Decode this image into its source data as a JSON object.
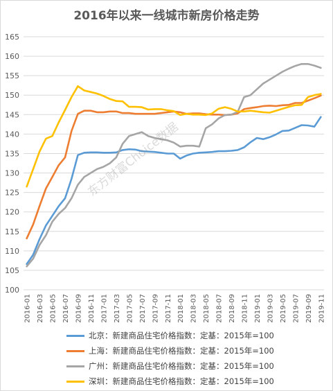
{
  "chart_data": {
    "type": "line",
    "title": "2016年以来一线城市新房价格走势",
    "ylim": [
      100,
      165
    ],
    "yticks": [
      100,
      105,
      110,
      115,
      120,
      125,
      130,
      135,
      140,
      145,
      150,
      155,
      160,
      165
    ],
    "x": [
      "2016-01",
      "2016-02",
      "2016-03",
      "2016-04",
      "2016-05",
      "2016-06",
      "2016-07",
      "2016-08",
      "2016-09",
      "2016-10",
      "2016-11",
      "2016-12",
      "2017-01",
      "2017-02",
      "2017-03",
      "2017-04",
      "2017-05",
      "2017-06",
      "2017-07",
      "2017-08",
      "2017-09",
      "2017-10",
      "2017-11",
      "2017-12",
      "2018-01",
      "2018-02",
      "2018-03",
      "2018-04",
      "2018-05",
      "2018-06",
      "2018-07",
      "2018-08",
      "2018-09",
      "2018-10",
      "2018-11",
      "2018-12",
      "2019-01",
      "2019-02",
      "2019-03",
      "2019-04",
      "2019-05",
      "2019-06",
      "2019-07",
      "2019-08",
      "2019-09",
      "2019-10",
      "2019-11"
    ],
    "xtick_labels": [
      "2016-01",
      "2016-03",
      "2016-05",
      "2016-07",
      "2016-09",
      "2016-11",
      "2017-01",
      "2017-03",
      "2017-05",
      "2017-07",
      "2017-09",
      "2017-11",
      "2018-01",
      "2018-03",
      "2018-05",
      "2018-07",
      "2018-09",
      "2018-11",
      "2019-01",
      "2019-03",
      "2019-05",
      "2019-07",
      "2019-09",
      "2019-11"
    ],
    "grid": true,
    "legend_position": "bottom",
    "series": [
      {
        "name": "北京：新建商品住宅价格指数：定基：2015年=100",
        "color": "#5b9bd5",
        "values": [
          106.6,
          109.0,
          113.0,
          116.5,
          119.0,
          121.5,
          123.5,
          128.5,
          134.6,
          135.2,
          135.3,
          135.3,
          135.2,
          135.2,
          135.3,
          135.9,
          136.1,
          136.0,
          135.6,
          135.5,
          135.4,
          135.2,
          135.0,
          135.0,
          133.7,
          134.5,
          135.0,
          135.2,
          135.3,
          135.4,
          135.6,
          135.6,
          135.7,
          135.9,
          136.6,
          137.9,
          139.0,
          138.7,
          139.2,
          139.9,
          140.8,
          140.9,
          141.6,
          142.3,
          142.2,
          141.9,
          144.4
        ]
      },
      {
        "name": "上海：新建商品住宅价格指数：定基：2015年=100",
        "color": "#ed7d31",
        "values": [
          113.2,
          116.8,
          121.5,
          126.0,
          129.0,
          132.0,
          134.0,
          140.8,
          145.2,
          146.0,
          146.0,
          145.6,
          145.6,
          145.8,
          145.8,
          145.4,
          145.4,
          145.2,
          145.2,
          145.2,
          145.2,
          145.4,
          145.6,
          145.8,
          145.6,
          145.2,
          145.3,
          145.3,
          145.1,
          145.0,
          145.0,
          144.9,
          145.0,
          145.3,
          146.4,
          146.7,
          146.9,
          147.2,
          147.3,
          147.2,
          147.4,
          147.5,
          148.0,
          148.0,
          148.6,
          149.2,
          149.9
        ]
      },
      {
        "name": "广州：新建商品住宅价格指数：定基：2015年=100",
        "color": "#a5a5a5",
        "values": [
          106.0,
          108.0,
          111.5,
          114.0,
          117.5,
          119.5,
          121.0,
          123.5,
          127.0,
          129.0,
          130.0,
          131.0,
          131.6,
          132.5,
          134.0,
          137.5,
          139.5,
          140.0,
          140.5,
          139.5,
          139.0,
          138.7,
          138.4,
          137.8,
          136.8,
          137.0,
          137.0,
          136.8,
          141.5,
          142.5,
          144.0,
          144.9,
          145.0,
          145.7,
          149.5,
          150.0,
          151.5,
          153.0,
          154.0,
          155.0,
          156.0,
          156.8,
          157.5,
          158.0,
          158.0,
          157.6,
          157.0
        ]
      },
      {
        "name": "深圳：新建商品住宅价格指数：定基：2015年=100",
        "color": "#ffc000",
        "values": [
          126.5,
          131.0,
          135.5,
          138.8,
          139.5,
          143.0,
          146.2,
          149.5,
          152.3,
          151.2,
          150.8,
          150.4,
          149.8,
          149.0,
          148.5,
          148.4,
          147.0,
          147.0,
          146.9,
          146.3,
          146.4,
          146.4,
          146.1,
          145.9,
          144.9,
          145.2,
          145.0,
          145.0,
          144.9,
          145.3,
          146.5,
          146.9,
          146.5,
          145.8,
          145.8,
          146.0,
          145.8,
          145.6,
          145.5,
          146.0,
          146.5,
          147.0,
          147.4,
          147.5,
          149.5,
          150.0,
          150.3
        ]
      }
    ]
  },
  "watermark": "东方财富Choice数据"
}
